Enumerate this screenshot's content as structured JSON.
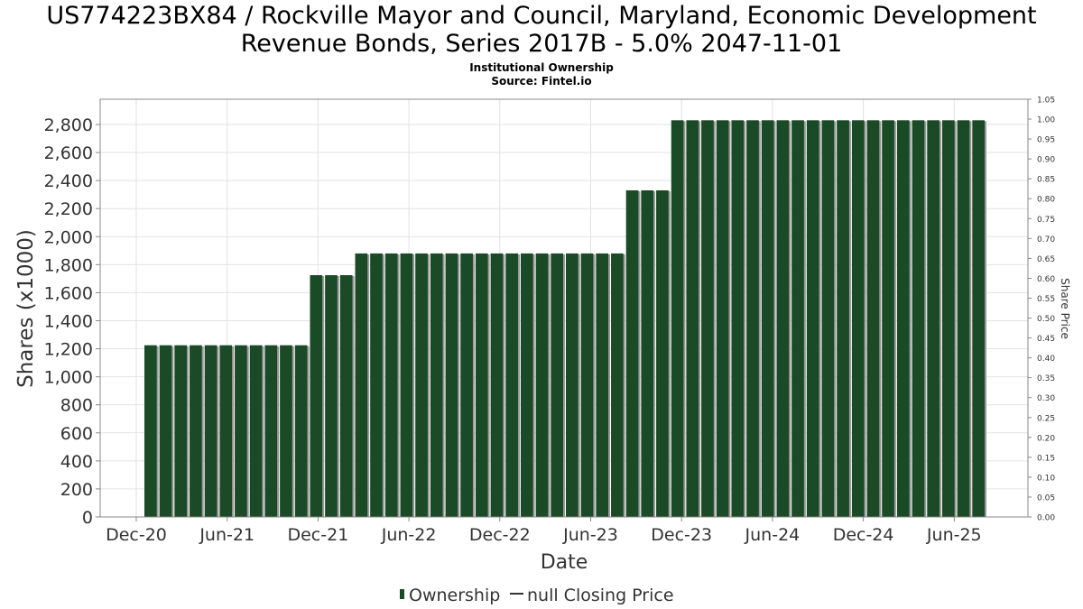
{
  "title_lines": [
    "US774223BX84 / Rockville Mayor and Council, Maryland, Economic Development",
    "Revenue Bonds, Series 2017B - 5.0% 2047-11-01"
  ],
  "subtitle_lines": [
    "Institutional Ownership",
    "Source: Fintel.io"
  ],
  "chart_data": {
    "type": "bar",
    "xlabel": "Date",
    "ylabel": "Shares (x1000)",
    "y2label": "Share Price",
    "ylim": [
      0,
      2980
    ],
    "y2lim": [
      0,
      1.05
    ],
    "y_ticks": [
      "0",
      "200",
      "400",
      "600",
      "800",
      "1,000",
      "1,200",
      "1,400",
      "1,600",
      "1,800",
      "2,000",
      "2,200",
      "2,400",
      "2,600",
      "2,800"
    ],
    "y2_ticks": [
      "0.00",
      "0.05",
      "0.10",
      "0.15",
      "0.20",
      "0.25",
      "0.30",
      "0.35",
      "0.40",
      "0.45",
      "0.50",
      "0.55",
      "0.60",
      "0.65",
      "0.70",
      "0.75",
      "0.80",
      "0.85",
      "0.90",
      "0.95",
      "1.00",
      "1.05"
    ],
    "x_ticks": [
      "Dec-20",
      "Jun-21",
      "Dec-21",
      "Jun-22",
      "Dec-22",
      "Jun-23",
      "Dec-23",
      "Jun-24",
      "Dec-24",
      "Jun-25"
    ],
    "grid": true,
    "legend": {
      "placement": "bottom",
      "entries": [
        {
          "label": "Ownership",
          "symbol": "bar"
        },
        {
          "label": "null Closing Price",
          "symbol": "line"
        }
      ]
    },
    "series": [
      {
        "name": "Ownership",
        "color": "#1b4a26",
        "values": [
          1225,
          1225,
          1225,
          1225,
          1225,
          1225,
          1225,
          1225,
          1225,
          1225,
          1225,
          1725,
          1725,
          1725,
          1880,
          1880,
          1880,
          1880,
          1880,
          1880,
          1880,
          1880,
          1880,
          1880,
          1880,
          1880,
          1880,
          1880,
          1880,
          1880,
          1880,
          1880,
          2330,
          2330,
          2330,
          2830,
          2830,
          2830,
          2830,
          2830,
          2830,
          2830,
          2830,
          2830,
          2830,
          2830,
          2830,
          2830,
          2830,
          2830,
          2830,
          2830,
          2830,
          2830,
          2830,
          2830
        ]
      }
    ]
  }
}
